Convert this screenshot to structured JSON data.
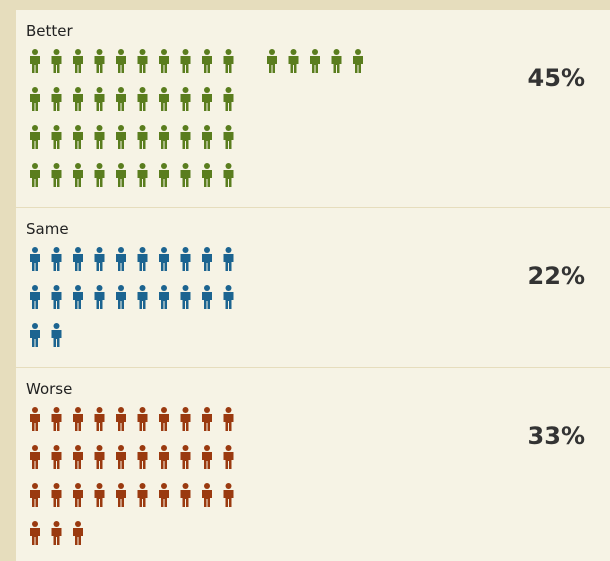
{
  "chart_data": {
    "type": "pictogram",
    "categories": [
      "Better",
      "Same",
      "Worse"
    ],
    "values": [
      45,
      22,
      33
    ],
    "value_labels": [
      "45%",
      "22%",
      "33%"
    ],
    "colors": [
      "#5a7d1e",
      "#1c6490",
      "#9a3a10"
    ]
  }
}
